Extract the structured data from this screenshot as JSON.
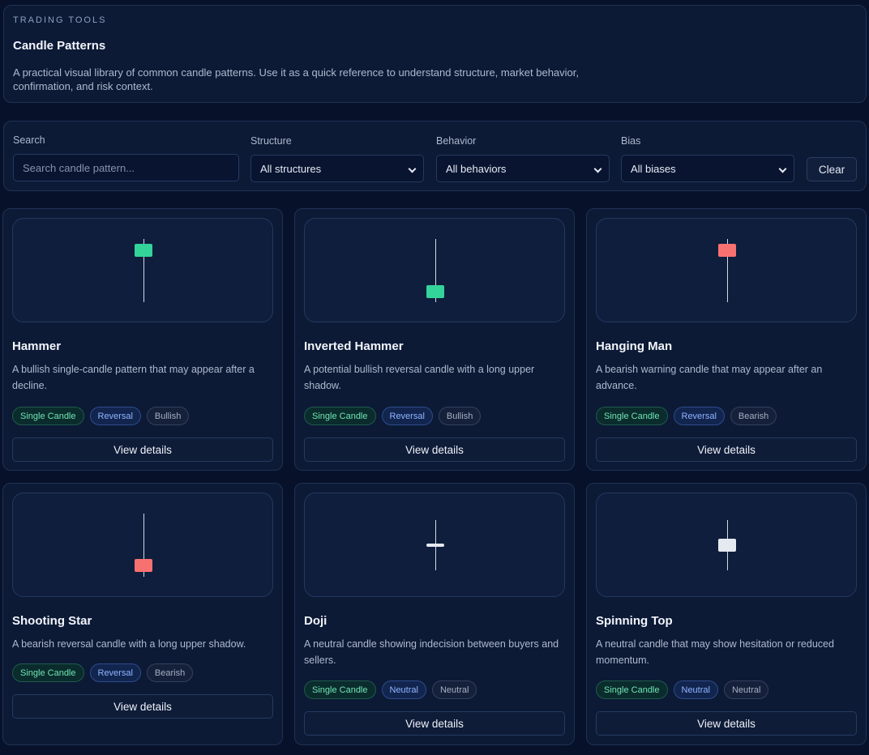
{
  "header": {
    "eyebrow": "TRADING TOOLS",
    "title": "Candle Patterns",
    "description": "A practical visual library of common candle patterns. Use it as a quick reference to understand structure, market behavior, confirmation, and risk context."
  },
  "filters": {
    "search_label": "Search",
    "search_placeholder": "Search candle pattern...",
    "structure_label": "Structure",
    "structure_value": "All structures",
    "behavior_label": "Behavior",
    "behavior_value": "All behaviors",
    "bias_label": "Bias",
    "bias_value": "All biases",
    "clear_label": "Clear"
  },
  "colors": {
    "bullish": "#34d399",
    "bearish": "#f87171",
    "neutral": "#e5e9f0"
  },
  "patterns": [
    {
      "name": "Hammer",
      "description": "A bullish single-candle pattern that may appear after a decline.",
      "tags": [
        "Single Candle",
        "Reversal",
        "Bullish"
      ],
      "view_label": "View details"
    },
    {
      "name": "Inverted Hammer",
      "description": "A potential bullish reversal candle with a long upper shadow.",
      "tags": [
        "Single Candle",
        "Reversal",
        "Bullish"
      ],
      "view_label": "View details"
    },
    {
      "name": "Hanging Man",
      "description": "A bearish warning candle that may appear after an advance.",
      "tags": [
        "Single Candle",
        "Reversal",
        "Bearish"
      ],
      "view_label": "View details"
    },
    {
      "name": "Shooting Star",
      "description": "A bearish reversal candle with a long upper shadow.",
      "tags": [
        "Single Candle",
        "Reversal",
        "Bearish"
      ],
      "view_label": "View details"
    },
    {
      "name": "Doji",
      "description": "A neutral candle showing indecision between buyers and sellers.",
      "tags": [
        "Single Candle",
        "Neutral",
        "Neutral"
      ],
      "view_label": "View details"
    },
    {
      "name": "Spinning Top",
      "description": "A neutral candle that may show hesitation or reduced momentum.",
      "tags": [
        "Single Candle",
        "Neutral",
        "Neutral"
      ],
      "view_label": "View details"
    }
  ]
}
